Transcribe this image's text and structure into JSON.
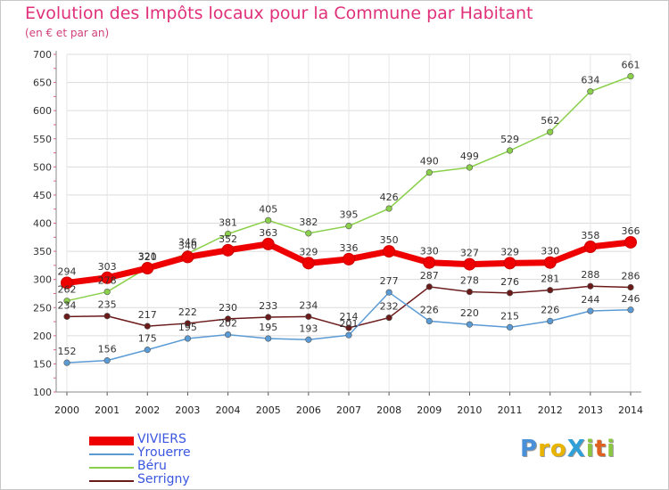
{
  "header": {
    "title": "Evolution des Impôts locaux pour la Commune par Habitant",
    "subtitle": "(en € et par an)"
  },
  "logo": {
    "text": "ProXiti",
    "colors": [
      "#4a90d9",
      "#e8b400",
      "#e8b400",
      "#2f9fd8",
      "#8ac640",
      "#e06020",
      "#8ac640"
    ]
  },
  "chart_data": {
    "type": "line",
    "title": "Evolution des Impôts locaux pour la Commune par Habitant",
    "subtitle": "(en € et par an)",
    "xlabel": "",
    "ylabel": "",
    "ylim": [
      100,
      700
    ],
    "yticks": [
      100,
      150,
      200,
      250,
      300,
      350,
      400,
      450,
      500,
      550,
      600,
      650,
      700
    ],
    "x": [
      "2000",
      "2001",
      "2002",
      "2003",
      "2004",
      "2005",
      "2006",
      "2007",
      "2008",
      "2009",
      "2010",
      "2011",
      "2012",
      "2013",
      "2014"
    ],
    "grid": true,
    "legend_position": "bottom-left",
    "series": [
      {
        "name": "Serrigny",
        "color": "#6b1a1a",
        "values": [
          234,
          235,
          217,
          222,
          230,
          233,
          234,
          214,
          232,
          287,
          278,
          276,
          281,
          288,
          286
        ]
      },
      {
        "name": "Yrouerre",
        "color": "#5b9bd5",
        "values": [
          152,
          156,
          175,
          195,
          202,
          195,
          193,
          201,
          277,
          226,
          220,
          215,
          226,
          244,
          246
        ]
      },
      {
        "name": "Béru",
        "color": "#8ad04a",
        "values": [
          262,
          278,
          321,
          346,
          381,
          405,
          382,
          395,
          426,
          490,
          499,
          529,
          562,
          634,
          661
        ]
      },
      {
        "name": "VIVIERS",
        "color": "#ee0000",
        "values": [
          294,
          303,
          320,
          340,
          352,
          363,
          329,
          336,
          350,
          330,
          327,
          329,
          330,
          358,
          366
        ]
      }
    ],
    "legend": [
      "VIVIERS",
      "Yrouerre",
      "Béru",
      "Serrigny"
    ]
  }
}
